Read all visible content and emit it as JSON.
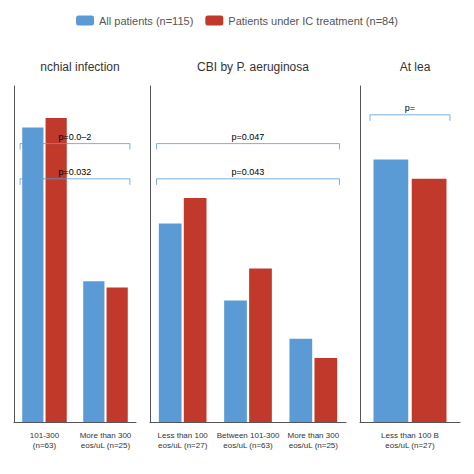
{
  "chart_data": [
    {
      "type": "bar",
      "title": "nchial infection",
      "categories": [
        "101-300\n(n=63)",
        "More than 300\neos/uL (n=25)"
      ],
      "series": [
        {
          "name": "All patients (n=115)",
          "color": "#5b9bd5",
          "values": [
            0.92,
            0.44
          ]
        },
        {
          "name": "Patients under IC treatment (n=84)",
          "color": "#c0392b",
          "values": [
            0.95,
            0.42
          ]
        }
      ],
      "ylim": [
        0,
        1.05
      ],
      "tick_labels": "x",
      "grid": false,
      "legend": "top",
      "annotations": [
        {
          "text": "p=0.0‒2",
          "y": 0.87
        },
        {
          "text": "p=0.032",
          "y": 0.76
        }
      ]
    },
    {
      "type": "bar",
      "title": "CBI by P. aeruginosa",
      "categories": [
        "Less than 100\neos/uL (n=27)",
        "Between 101-300\neos/uL (n=63)",
        "More than 300\neos/uL (n=25)"
      ],
      "series": [
        {
          "name": "All patients (n=115)",
          "color": "#5b9bd5",
          "values": [
            0.62,
            0.38,
            0.26
          ]
        },
        {
          "name": "Patients under IC treatment (n=84)",
          "color": "#c0392b",
          "values": [
            0.7,
            0.48,
            0.2
          ]
        }
      ],
      "ylim": [
        0,
        1.05
      ],
      "tick_labels": "x",
      "grid": false,
      "annotations": [
        {
          "text": "p=0.047",
          "y": 0.87
        },
        {
          "text": "p=0.043",
          "y": 0.76
        }
      ]
    },
    {
      "type": "bar",
      "title": "At lea",
      "categories": [
        "Less than 100 B\neos/uL (n=27)"
      ],
      "series": [
        {
          "name": "All patients (n=115)",
          "color": "#5b9bd5",
          "values": [
            0.82
          ]
        },
        {
          "name": "Patients under IC treatment (n=84)",
          "color": "#c0392b",
          "values": [
            0.76
          ]
        }
      ],
      "ylim": [
        0,
        1.05
      ],
      "tick_labels": "x",
      "grid": false,
      "annotations": [
        {
          "text": "p=",
          "y": 0.96
        }
      ]
    }
  ]
}
